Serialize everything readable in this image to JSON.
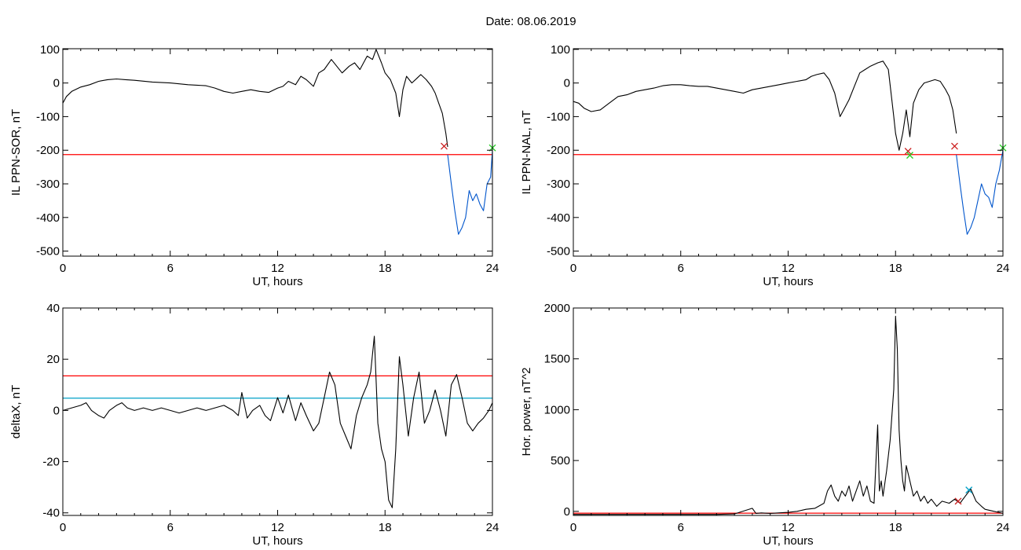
{
  "title": "Date:  08.06.2019",
  "colors": {
    "data": "#000000",
    "threshold": "#ff0000",
    "highlight": "#0055cc",
    "baseline": "#00a0c8",
    "marker_red": "#cc2222",
    "marker_green": "#22cc22"
  },
  "chart_data": [
    {
      "type": "line",
      "name": "panel-top-left",
      "xlabel": "UT, hours",
      "ylabel": "IL PPN-SOR, nT",
      "xlim": [
        0,
        24
      ],
      "ylim": [
        -515,
        102
      ],
      "xticks": [
        0,
        6,
        12,
        18,
        24
      ],
      "yticks": [
        100,
        0,
        -100,
        -200,
        -300,
        -400,
        -500
      ],
      "hlines": [
        {
          "y": -213,
          "color": "threshold"
        }
      ],
      "series": [
        {
          "values_x": [
            0,
            0.2,
            0.5,
            1,
            1.5,
            2,
            2.5,
            3,
            3.5,
            4,
            5,
            6,
            7,
            8,
            8.5,
            9,
            9.5,
            10,
            10.5,
            11,
            11.5,
            12,
            12.3,
            12.6,
            13,
            13.3,
            13.6,
            14,
            14.3,
            14.6,
            15,
            15.3,
            15.6,
            16,
            16.3,
            16.6,
            17,
            17.3,
            17.5,
            17.8,
            18,
            18.3,
            18.6,
            18.8,
            19,
            19.2,
            19.5,
            19.8,
            20,
            20.3,
            20.6,
            20.8,
            21,
            21.2,
            21.4,
            21.5
          ],
          "values_y": [
            -60,
            -40,
            -25,
            -12,
            -5,
            5,
            10,
            12,
            10,
            8,
            3,
            0,
            -5,
            -8,
            -15,
            -25,
            -30,
            -25,
            -20,
            -25,
            -28,
            -15,
            -10,
            5,
            -5,
            20,
            10,
            -10,
            30,
            40,
            70,
            50,
            30,
            50,
            60,
            40,
            80,
            70,
            100,
            60,
            30,
            10,
            -30,
            -100,
            -20,
            20,
            0,
            15,
            25,
            10,
            -10,
            -30,
            -60,
            -90,
            -150,
            -190
          ],
          "color": "data"
        },
        {
          "values_x": [
            21.5,
            21.7,
            21.9,
            22.1,
            22.3,
            22.5,
            22.7,
            22.9,
            23.1,
            23.3,
            23.5,
            23.7,
            23.9,
            24
          ],
          "values_y": [
            -213,
            -300,
            -380,
            -450,
            -430,
            -400,
            -320,
            -350,
            -330,
            -360,
            -380,
            -300,
            -280,
            -200
          ],
          "color": "highlight"
        }
      ],
      "markers": [
        {
          "x": 21.3,
          "y": -188,
          "color": "marker_red"
        },
        {
          "x": 24,
          "y": -193,
          "color": "marker_green"
        }
      ]
    },
    {
      "type": "line",
      "name": "panel-top-right",
      "xlabel": "UT, hours",
      "ylabel": "IL PPN-NAL, nT",
      "xlim": [
        0,
        24
      ],
      "ylim": [
        -515,
        102
      ],
      "xticks": [
        0,
        6,
        12,
        18,
        24
      ],
      "yticks": [
        100,
        0,
        -100,
        -200,
        -300,
        -400,
        -500
      ],
      "hlines": [
        {
          "y": -213,
          "color": "threshold"
        }
      ],
      "series": [
        {
          "values_x": [
            0,
            0.3,
            0.6,
            1,
            1.5,
            2,
            2.5,
            3,
            3.5,
            4,
            4.5,
            5,
            5.5,
            6,
            6.5,
            7,
            7.5,
            8,
            8.5,
            9,
            9.5,
            10,
            10.5,
            11,
            11.5,
            12,
            12.5,
            13,
            13.3,
            13.6,
            14,
            14.3,
            14.6,
            14.9,
            15.1,
            15.4,
            15.7,
            16,
            16.3,
            16.6,
            17,
            17.3,
            17.6,
            17.9,
            18,
            18.2,
            18.4,
            18.6,
            18.8,
            19,
            19.3,
            19.6,
            19.9,
            20.2,
            20.5,
            20.8,
            21,
            21.2,
            21.4
          ],
          "values_y": [
            -55,
            -60,
            -75,
            -85,
            -80,
            -60,
            -40,
            -35,
            -25,
            -20,
            -15,
            -8,
            -5,
            -5,
            -8,
            -10,
            -10,
            -15,
            -20,
            -25,
            -30,
            -20,
            -15,
            -10,
            -5,
            0,
            5,
            10,
            20,
            25,
            30,
            10,
            -30,
            -100,
            -80,
            -50,
            -10,
            30,
            40,
            50,
            60,
            65,
            40,
            -100,
            -150,
            -200,
            -150,
            -80,
            -160,
            -60,
            -20,
            0,
            5,
            10,
            5,
            -20,
            -40,
            -80,
            -150
          ],
          "color": "data"
        },
        {
          "values_x": [
            21.4,
            21.6,
            21.8,
            22,
            22.2,
            22.4,
            22.6,
            22.8,
            23,
            23.2,
            23.4,
            23.6,
            23.8,
            24
          ],
          "values_y": [
            -213,
            -300,
            -380,
            -450,
            -430,
            -400,
            -350,
            -300,
            -330,
            -340,
            -370,
            -300,
            -260,
            -200
          ],
          "color": "highlight"
        }
      ],
      "markers": [
        {
          "x": 18.7,
          "y": -203,
          "color": "marker_red"
        },
        {
          "x": 18.8,
          "y": -215,
          "color": "marker_green"
        },
        {
          "x": 21.3,
          "y": -188,
          "color": "marker_red"
        },
        {
          "x": 24,
          "y": -193,
          "color": "marker_green"
        }
      ]
    },
    {
      "type": "line",
      "name": "panel-bottom-left",
      "xlabel": "UT, hours",
      "ylabel": "deltaX, nT",
      "xlim": [
        0,
        24
      ],
      "ylim": [
        -41,
        40
      ],
      "xticks": [
        0,
        6,
        12,
        18,
        24
      ],
      "yticks": [
        40,
        20,
        0,
        -20,
        -40
      ],
      "hlines": [
        {
          "y": 13.5,
          "color": "threshold"
        },
        {
          "y": 4.8,
          "color": "baseline"
        }
      ],
      "series": [
        {
          "values_x": [
            0,
            0.5,
            1,
            1.3,
            1.6,
            2,
            2.3,
            2.6,
            3,
            3.3,
            3.6,
            4,
            4.5,
            5,
            5.5,
            6,
            6.5,
            7,
            7.5,
            8,
            8.5,
            9,
            9.5,
            9.8,
            10,
            10.3,
            10.6,
            11,
            11.3,
            11.6,
            12,
            12.3,
            12.6,
            13,
            13.3,
            13.6,
            14,
            14.3,
            14.6,
            14.9,
            15.2,
            15.5,
            15.8,
            16.1,
            16.4,
            16.7,
            17,
            17.2,
            17.4,
            17.6,
            17.8,
            18,
            18.2,
            18.4,
            18.6,
            18.8,
            19,
            19.3,
            19.6,
            19.9,
            20.2,
            20.5,
            20.8,
            21.1,
            21.4,
            21.7,
            22,
            22.3,
            22.6,
            22.9,
            23.2,
            23.5,
            23.8,
            24
          ],
          "values_y": [
            0,
            1,
            2,
            3,
            0,
            -2,
            -3,
            0,
            2,
            3,
            1,
            0,
            1,
            0,
            1,
            0,
            -1,
            0,
            1,
            0,
            1,
            2,
            0,
            -2,
            7,
            -3,
            0,
            2,
            -2,
            -4,
            5,
            -1,
            6,
            -4,
            3,
            -2,
            -8,
            -5,
            5,
            15,
            10,
            -5,
            -10,
            -15,
            -2,
            5,
            10,
            15,
            29,
            -5,
            -15,
            -20,
            -35,
            -38,
            -15,
            21,
            10,
            -10,
            5,
            15,
            -5,
            0,
            8,
            0,
            -10,
            10,
            14,
            5,
            -5,
            -8,
            -5,
            -3,
            0,
            3
          ],
          "color": "data"
        }
      ]
    },
    {
      "type": "line",
      "name": "panel-bottom-right",
      "xlabel": "UT, hours",
      "ylabel": "Hor. power, nT^2",
      "xlim": [
        0,
        24
      ],
      "ylim": [
        -40,
        2000
      ],
      "xticks": [
        0,
        6,
        12,
        18,
        24
      ],
      "yticks": [
        2000,
        1500,
        1000,
        500,
        0
      ],
      "ytick_labels": [
        "2000",
        "1500",
        "1000",
        "500",
        "0"
      ],
      "hlines": [
        {
          "y": -18,
          "color": "threshold"
        }
      ],
      "series": [
        {
          "values_x": [
            0,
            2,
            4,
            6,
            8,
            9,
            10,
            10.2,
            10.5,
            11,
            12,
            12.5,
            13,
            13.5,
            14,
            14.2,
            14.4,
            14.6,
            14.8,
            15,
            15.2,
            15.4,
            15.6,
            15.8,
            16,
            16.2,
            16.4,
            16.6,
            16.8,
            17,
            17.1,
            17.2,
            17.3,
            17.5,
            17.7,
            17.9,
            18,
            18.1,
            18.2,
            18.3,
            18.4,
            18.5,
            18.6,
            18.8,
            19,
            19.2,
            19.4,
            19.6,
            19.8,
            20,
            20.3,
            20.6,
            21,
            21.3,
            21.6,
            21.9,
            22.2,
            22.5,
            22.8,
            23,
            23.5,
            24
          ],
          "values_y": [
            -30,
            -30,
            -30,
            -30,
            -30,
            -25,
            30,
            -20,
            -15,
            -20,
            -10,
            0,
            20,
            30,
            80,
            200,
            260,
            150,
            100,
            200,
            150,
            250,
            100,
            200,
            300,
            150,
            250,
            100,
            80,
            850,
            200,
            300,
            150,
            400,
            700,
            1200,
            1920,
            1600,
            800,
            500,
            300,
            200,
            450,
            300,
            150,
            200,
            100,
            150,
            80,
            120,
            50,
            100,
            80,
            120,
            80,
            150,
            220,
            100,
            50,
            20,
            0,
            -20
          ],
          "color": "data"
        }
      ],
      "markers": [
        {
          "x": 21.5,
          "y": 100,
          "color": "marker_red"
        },
        {
          "x": 22.1,
          "y": 210,
          "color": "baseline"
        }
      ]
    }
  ]
}
